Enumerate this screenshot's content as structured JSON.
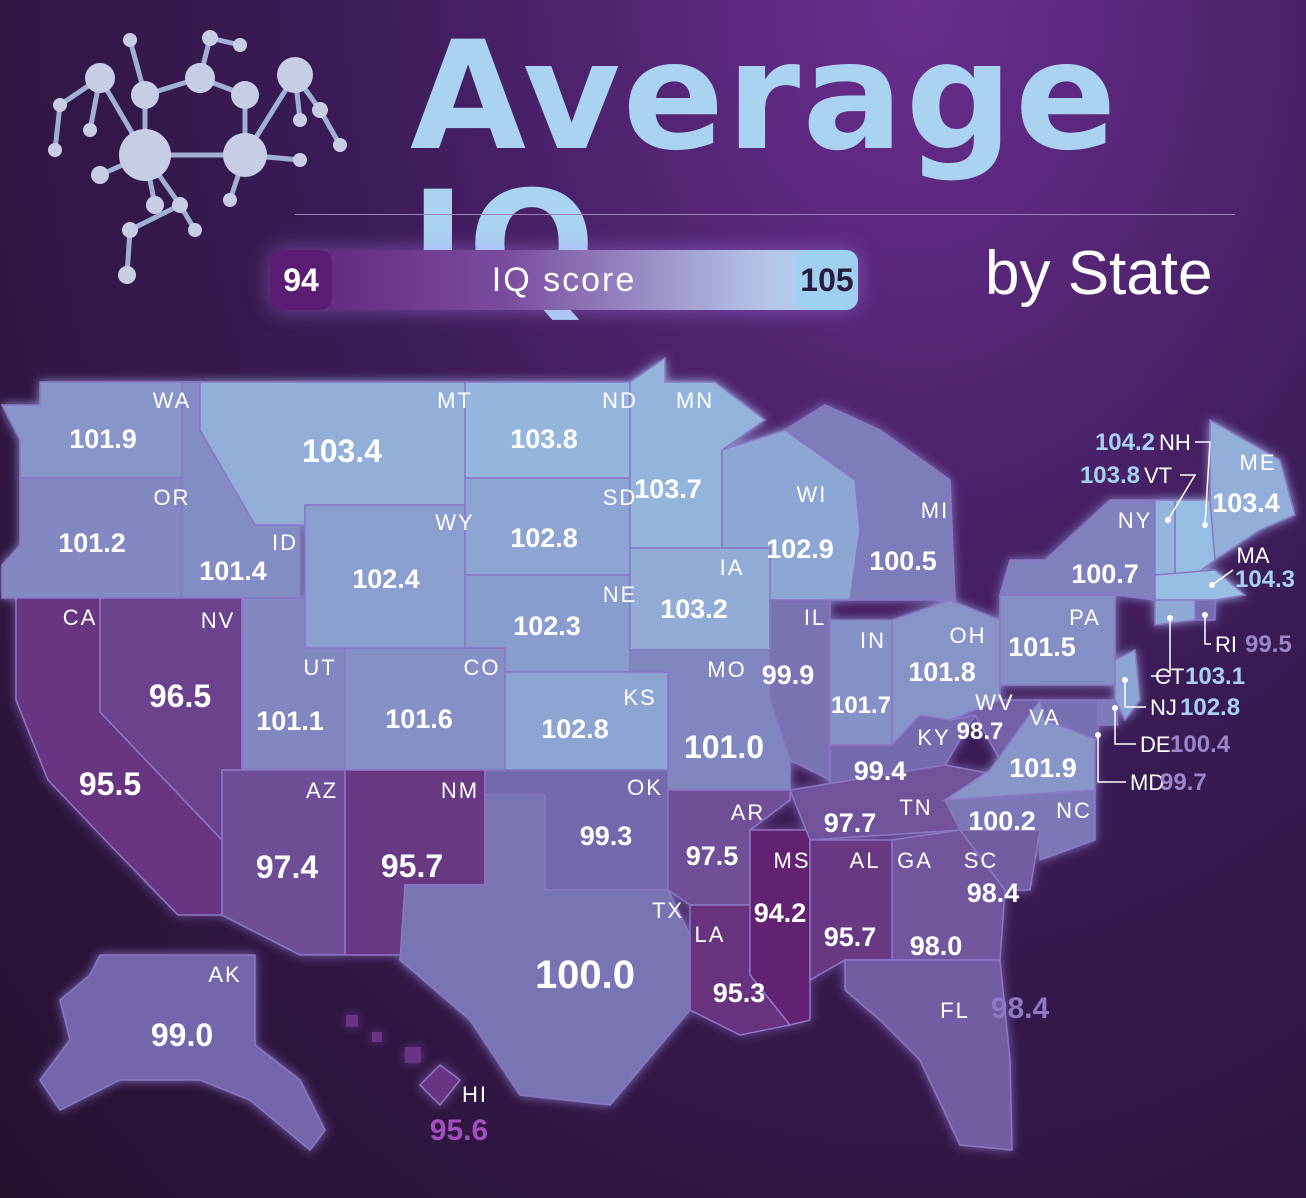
{
  "title": "Average IQ",
  "subtitle": "by State",
  "legend": {
    "label": "IQ score",
    "min": "94",
    "max": "105"
  },
  "colors": {
    "low": "#62206f",
    "high": "#9ccbea",
    "title": "#a9d3f1"
  },
  "states": [
    {
      "code": "WA",
      "value": "101.9"
    },
    {
      "code": "OR",
      "value": "101.2"
    },
    {
      "code": "CA",
      "value": "95.5"
    },
    {
      "code": "ID",
      "value": "101.4"
    },
    {
      "code": "NV",
      "value": "96.5"
    },
    {
      "code": "MT",
      "value": "103.4"
    },
    {
      "code": "WY",
      "value": "102.4"
    },
    {
      "code": "UT",
      "value": "101.1"
    },
    {
      "code": "AZ",
      "value": "97.4"
    },
    {
      "code": "CO",
      "value": "101.6"
    },
    {
      "code": "NM",
      "value": "95.7"
    },
    {
      "code": "ND",
      "value": "103.8"
    },
    {
      "code": "SD",
      "value": "102.8"
    },
    {
      "code": "NE",
      "value": "102.3"
    },
    {
      "code": "KS",
      "value": "102.8"
    },
    {
      "code": "OK",
      "value": "99.3"
    },
    {
      "code": "TX",
      "value": "100.0"
    },
    {
      "code": "MN",
      "value": "103.7"
    },
    {
      "code": "IA",
      "value": "103.2"
    },
    {
      "code": "MO",
      "value": "101.0"
    },
    {
      "code": "AR",
      "value": "97.5"
    },
    {
      "code": "LA",
      "value": "95.3"
    },
    {
      "code": "WI",
      "value": "102.9"
    },
    {
      "code": "IL",
      "value": "99.9"
    },
    {
      "code": "MS",
      "value": "94.2"
    },
    {
      "code": "MI",
      "value": "100.5"
    },
    {
      "code": "IN",
      "value": "101.7"
    },
    {
      "code": "KY",
      "value": "99.4"
    },
    {
      "code": "TN",
      "value": "97.7"
    },
    {
      "code": "AL",
      "value": "95.7"
    },
    {
      "code": "OH",
      "value": "101.8"
    },
    {
      "code": "WV",
      "value": "98.7"
    },
    {
      "code": "GA",
      "value": "98.0"
    },
    {
      "code": "FL",
      "value": "98.4"
    },
    {
      "code": "SC",
      "value": "98.4"
    },
    {
      "code": "NC",
      "value": "100.2"
    },
    {
      "code": "VA",
      "value": "101.9"
    },
    {
      "code": "PA",
      "value": "101.5"
    },
    {
      "code": "NY",
      "value": "100.7"
    },
    {
      "code": "ME",
      "value": "103.4"
    },
    {
      "code": "NH",
      "value": "104.2"
    },
    {
      "code": "VT",
      "value": "103.8"
    },
    {
      "code": "MA",
      "value": "104.3"
    },
    {
      "code": "RI",
      "value": "99.5"
    },
    {
      "code": "CT",
      "value": "103.1"
    },
    {
      "code": "NJ",
      "value": "102.8"
    },
    {
      "code": "DE",
      "value": "100.4"
    },
    {
      "code": "MD",
      "value": "99.7"
    },
    {
      "code": "AK",
      "value": "99.0"
    },
    {
      "code": "HI",
      "value": "95.6"
    }
  ]
}
